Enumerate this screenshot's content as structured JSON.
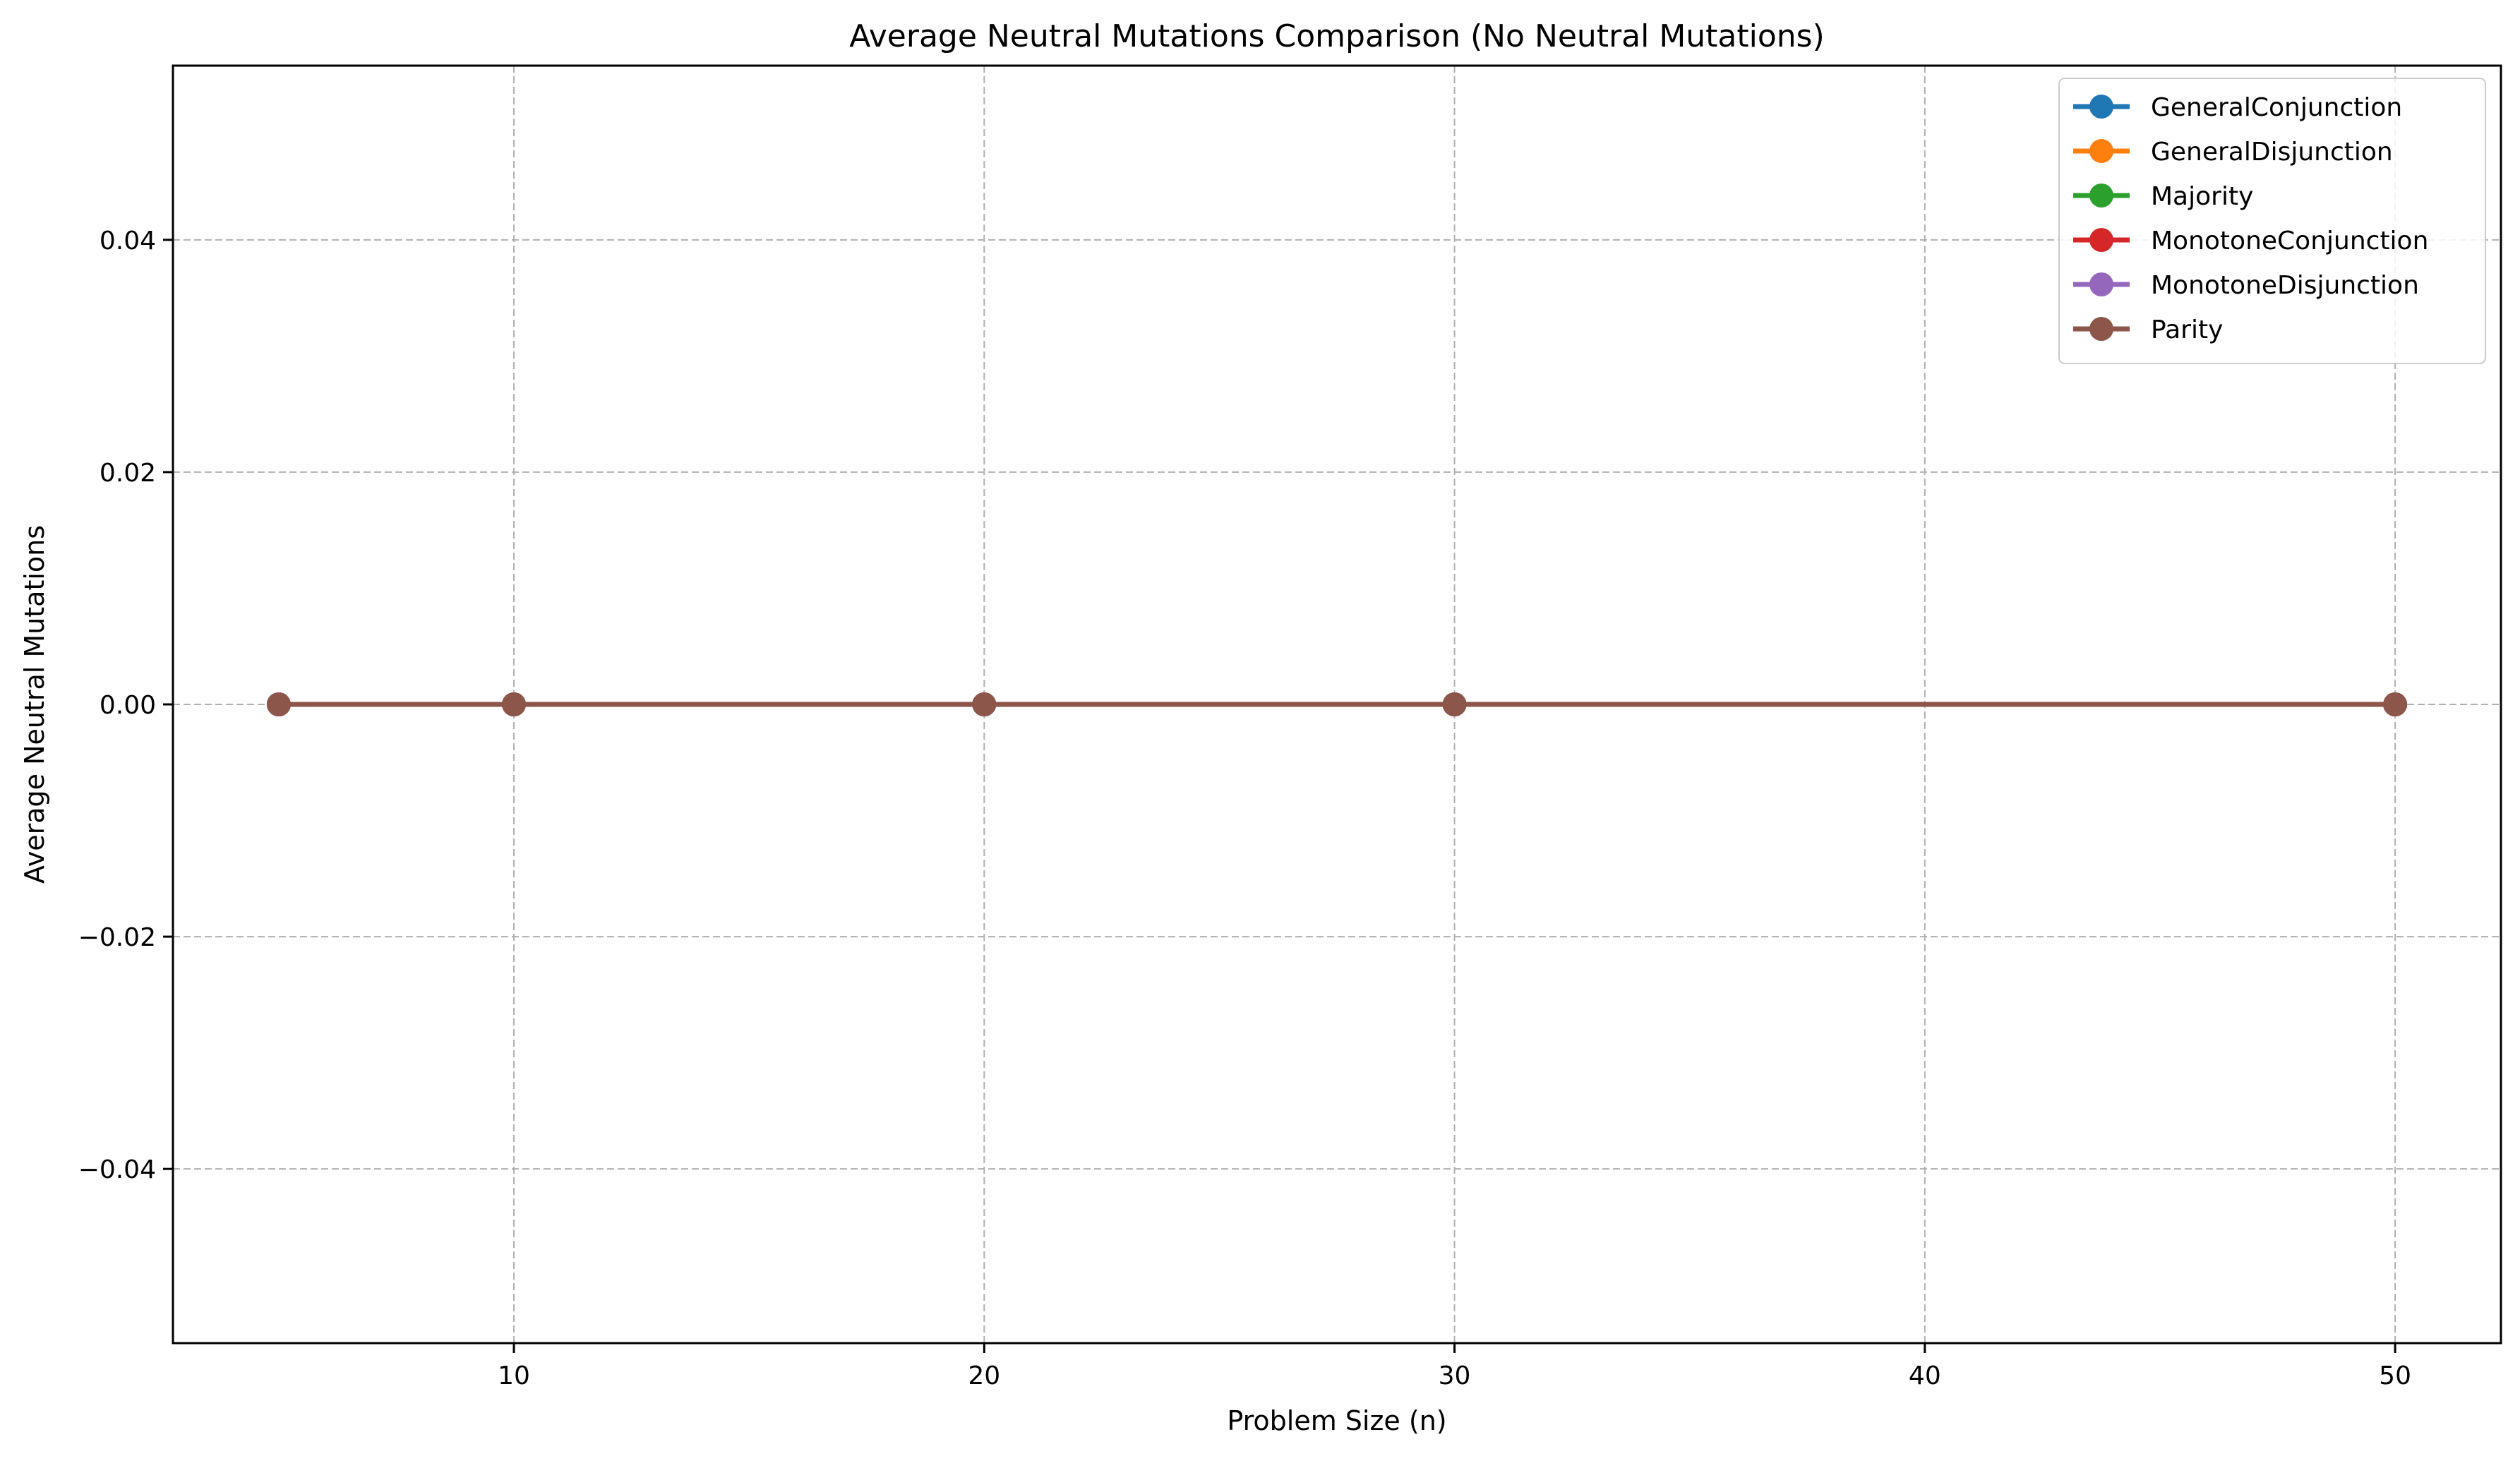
{
  "chart_data": {
    "type": "line",
    "title": "Average Neutral Mutations Comparison (No Neutral Mutations)",
    "xlabel": "Problem Size (n)",
    "ylabel": "Average Neutral Mutations",
    "x": [
      5,
      10,
      20,
      30,
      50
    ],
    "xlim": [
      2.75,
      52.25
    ],
    "ylim": [
      -0.055,
      0.055
    ],
    "xticks": [
      10,
      20,
      30,
      40,
      50
    ],
    "xtick_labels": [
      "10",
      "20",
      "30",
      "40",
      "50"
    ],
    "yticks": [
      -0.04,
      -0.02,
      0.0,
      0.02,
      0.04
    ],
    "ytick_labels": [
      "−0.04",
      "−0.02",
      "0.00",
      "0.02",
      "0.04"
    ],
    "grid": true,
    "legend_position": "top-right",
    "series": [
      {
        "name": "GeneralConjunction",
        "color": "#1f77b4",
        "values": [
          0,
          0,
          0,
          0,
          0
        ]
      },
      {
        "name": "GeneralDisjunction",
        "color": "#ff7f0e",
        "values": [
          0,
          0,
          0,
          0,
          0
        ]
      },
      {
        "name": "Majority",
        "color": "#2ca02c",
        "values": [
          0,
          0,
          0,
          0,
          0
        ]
      },
      {
        "name": "MonotoneConjunction",
        "color": "#d62728",
        "values": [
          0,
          0,
          0,
          0,
          0
        ]
      },
      {
        "name": "MonotoneDisjunction",
        "color": "#9467bd",
        "values": [
          0,
          0,
          0,
          0,
          0
        ]
      },
      {
        "name": "Parity",
        "color": "#8c564b",
        "values": [
          0,
          0,
          0,
          0,
          0
        ]
      }
    ]
  }
}
